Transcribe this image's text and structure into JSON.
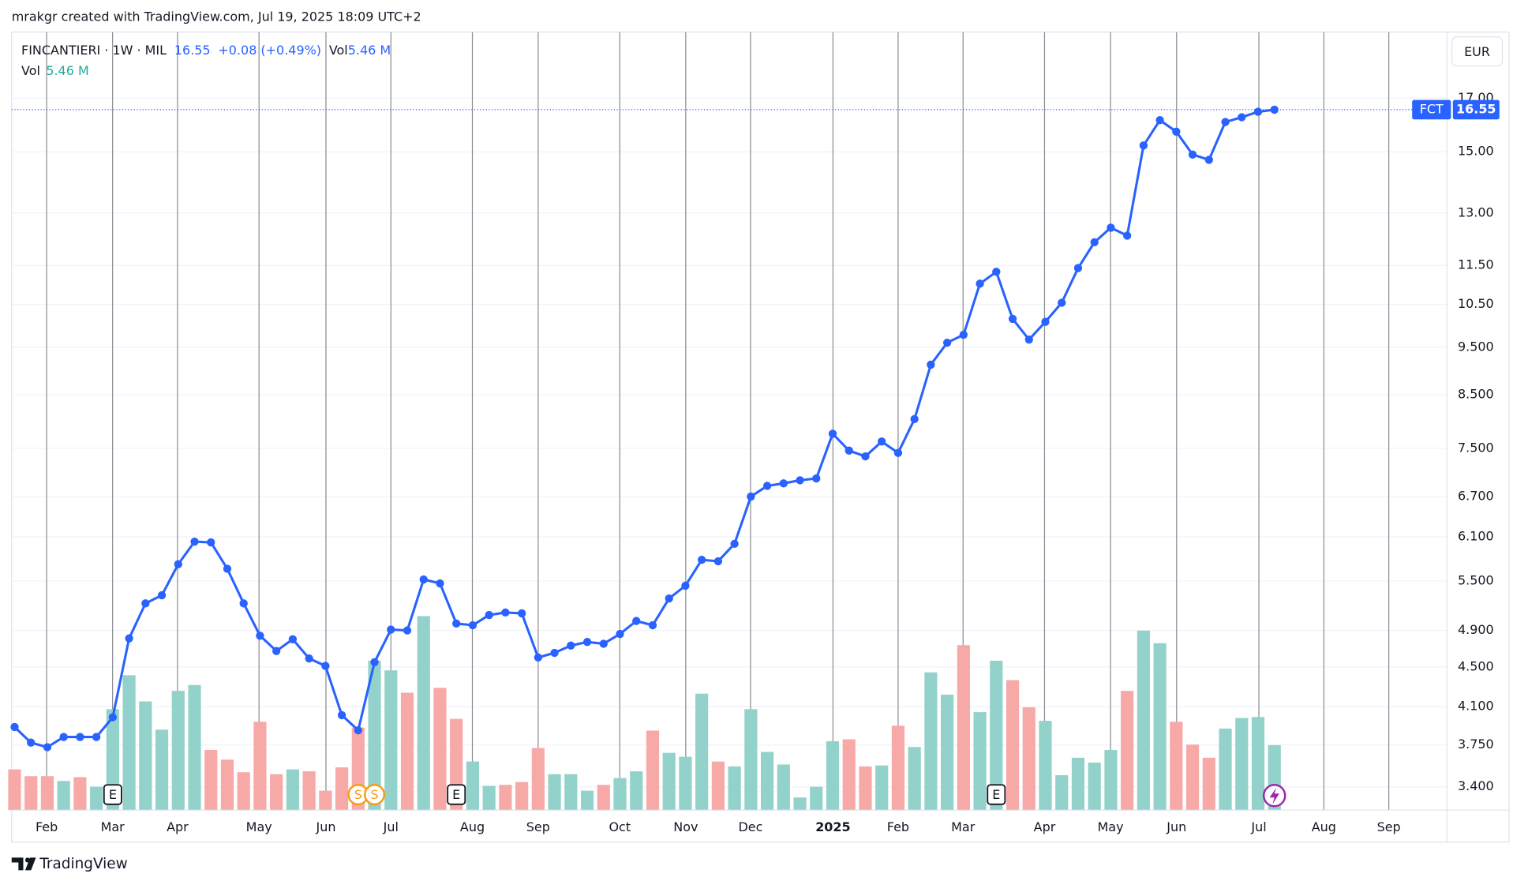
{
  "caption": "mrakgr created with TradingView.com, Jul 19, 2025 18:09 UTC+2",
  "brand": "TradingView",
  "chart_data": {
    "type": "line",
    "title": "FINCANTIERI · 1W · MIL",
    "change": "+0.08 (+0.49%)",
    "currency": "EUR",
    "log_y": true,
    "grid": true,
    "x": [
      0,
      1,
      2,
      3,
      4,
      5,
      6,
      7,
      8,
      9,
      10,
      11,
      12,
      13,
      14,
      15,
      16,
      17,
      18,
      19,
      20,
      21,
      22,
      23,
      24,
      25,
      26,
      27,
      28,
      29,
      30,
      31,
      32,
      33,
      34,
      35,
      36,
      37,
      38,
      39,
      40,
      41,
      42,
      43,
      44,
      45,
      46,
      47,
      48,
      49,
      50,
      51,
      52,
      53,
      54,
      55,
      56,
      57,
      58,
      59,
      60,
      61,
      62,
      63,
      64,
      65,
      66,
      67,
      68,
      69,
      70,
      71,
      72,
      73,
      74,
      75,
      76,
      77
    ],
    "series": [
      {
        "name": "FCT",
        "color": "#2962ff",
        "values": [
          3.91,
          3.77,
          3.73,
          3.82,
          3.82,
          3.82,
          4.0,
          4.81,
          5.22,
          5.32,
          5.72,
          6.03,
          6.02,
          5.66,
          5.22,
          4.84,
          4.67,
          4.8,
          4.59,
          4.51,
          4.02,
          3.88,
          4.55,
          4.91,
          4.9,
          5.52,
          5.47,
          4.98,
          4.96,
          5.08,
          5.11,
          5.1,
          4.6,
          4.65,
          4.73,
          4.77,
          4.75,
          4.86,
          5.01,
          4.96,
          5.28,
          5.44,
          5.78,
          5.76,
          6.0,
          6.7,
          6.87,
          6.91,
          6.96,
          6.99,
          7.76,
          7.46,
          7.36,
          7.62,
          7.42,
          8.03,
          9.12,
          9.6,
          9.78,
          11.02,
          11.33,
          10.15,
          9.67,
          10.08,
          10.54,
          11.43,
          12.14,
          12.56,
          12.33,
          15.22,
          16.15,
          15.72,
          14.9,
          14.72,
          16.08,
          16.26,
          16.47,
          16.55
        ]
      }
    ],
    "volume": {
      "name": "Vol",
      "last_value_label": "5.46 M",
      "values": [
        3.42,
        2.85,
        2.85,
        2.45,
        2.77,
        1.96,
        8.48,
        11.33,
        9.13,
        6.76,
        10.02,
        10.51,
        5.05,
        4.24,
        3.18,
        7.42,
        3.02,
        3.42,
        3.26,
        1.63,
        3.59,
        6.93,
        12.55,
        11.74,
        9.86,
        16.3,
        10.27,
        7.66,
        4.08,
        2.04,
        2.12,
        2.36,
        5.22,
        3.02,
        3.02,
        1.63,
        2.12,
        2.69,
        3.26,
        6.68,
        4.81,
        4.48,
        9.78,
        4.08,
        3.67,
        8.48,
        4.89,
        3.83,
        1.06,
        1.96,
        5.79,
        5.95,
        3.67,
        3.75,
        7.09,
        5.3,
        11.57,
        9.7,
        13.86,
        8.23,
        12.55,
        10.92,
        8.64,
        7.5,
        2.93,
        4.4,
        3.99,
        5.05,
        10.02,
        15.08,
        14.02,
        7.42,
        5.5,
        4.4,
        6.85,
        7.74,
        7.82,
        5.46
      ],
      "colors": [
        "#f7a9a7",
        "#f7a9a7",
        "#f7a9a7",
        "#92d2cb",
        "#f7a9a7",
        "#92d2cb",
        "#92d2cb",
        "#92d2cb",
        "#92d2cb",
        "#92d2cb",
        "#92d2cb",
        "#92d2cb",
        "#f7a9a7",
        "#f7a9a7",
        "#f7a9a7",
        "#f7a9a7",
        "#f7a9a7",
        "#92d2cb",
        "#f7a9a7",
        "#f7a9a7",
        "#f7a9a7",
        "#f7a9a7",
        "#92d2cb",
        "#92d2cb",
        "#f7a9a7",
        "#92d2cb",
        "#f7a9a7",
        "#f7a9a7",
        "#92d2cb",
        "#92d2cb",
        "#f7a9a7",
        "#f7a9a7",
        "#f7a9a7",
        "#92d2cb",
        "#92d2cb",
        "#92d2cb",
        "#f7a9a7",
        "#92d2cb",
        "#92d2cb",
        "#f7a9a7",
        "#92d2cb",
        "#92d2cb",
        "#92d2cb",
        "#f7a9a7",
        "#92d2cb",
        "#92d2cb",
        "#92d2cb",
        "#92d2cb",
        "#92d2cb",
        "#92d2cb",
        "#92d2cb",
        "#f7a9a7",
        "#f7a9a7",
        "#92d2cb",
        "#f7a9a7",
        "#92d2cb",
        "#92d2cb",
        "#92d2cb",
        "#f7a9a7",
        "#92d2cb",
        "#92d2cb",
        "#f7a9a7",
        "#f7a9a7",
        "#92d2cb",
        "#92d2cb",
        "#92d2cb",
        "#92d2cb",
        "#92d2cb",
        "#f7a9a7",
        "#92d2cb",
        "#92d2cb",
        "#f7a9a7",
        "#f7a9a7",
        "#f7a9a7",
        "#92d2cb",
        "#92d2cb",
        "#92d2cb",
        "#92d2cb"
      ]
    },
    "xlim": [
      -0.18,
      87.55
    ],
    "xticks": [
      {
        "value": 1.96,
        "label": "Feb"
      },
      {
        "value": 5.99,
        "label": "Mar"
      },
      {
        "value": 9.96,
        "label": "Apr"
      },
      {
        "value": 14.94,
        "label": "May"
      },
      {
        "value": 19.03,
        "label": "Jun"
      },
      {
        "value": 23.0,
        "label": "Jul"
      },
      {
        "value": 27.98,
        "label": "Aug"
      },
      {
        "value": 32.0,
        "label": "Sep"
      },
      {
        "value": 36.99,
        "label": "Oct"
      },
      {
        "value": 41.02,
        "label": "Nov"
      },
      {
        "value": 44.98,
        "label": "Dec"
      },
      {
        "value": 50.02,
        "label": "2025",
        "bold": true
      },
      {
        "value": 54.0,
        "label": "Feb"
      },
      {
        "value": 57.97,
        "label": "Mar"
      },
      {
        "value": 62.95,
        "label": "Apr"
      },
      {
        "value": 66.98,
        "label": "May"
      },
      {
        "value": 71.02,
        "label": "Jun"
      },
      {
        "value": 76.05,
        "label": "Jul"
      },
      {
        "value": 80.02,
        "label": "Aug"
      },
      {
        "value": 83.99,
        "label": "Sep"
      }
    ],
    "ylim": [
      3.22,
      19.75
    ],
    "yticks": [
      {
        "value": 3.4,
        "label": "3.400"
      },
      {
        "value": 3.75,
        "label": "3.750"
      },
      {
        "value": 4.1,
        "label": "4.100"
      },
      {
        "value": 4.5,
        "label": "4.500"
      },
      {
        "value": 4.9,
        "label": "4.900"
      },
      {
        "value": 5.5,
        "label": "5.500"
      },
      {
        "value": 6.1,
        "label": "6.100"
      },
      {
        "value": 6.7,
        "label": "6.700"
      },
      {
        "value": 7.5,
        "label": "7.500"
      },
      {
        "value": 8.5,
        "label": "8.500"
      },
      {
        "value": 9.5,
        "label": "9.500"
      },
      {
        "value": 10.5,
        "label": "10.50"
      },
      {
        "value": 11.5,
        "label": "11.50"
      },
      {
        "value": 13,
        "label": "13.00"
      },
      {
        "value": 15,
        "label": "15.00"
      },
      {
        "value": 17,
        "label": "17.00"
      }
    ],
    "events": [
      {
        "x": 6,
        "label": "E",
        "shape": "square"
      },
      {
        "x": 21,
        "label": "S",
        "shape": "circle"
      },
      {
        "x": 22,
        "label": "S",
        "shape": "circle"
      },
      {
        "x": 27,
        "label": "E",
        "shape": "square"
      },
      {
        "x": 60,
        "label": "E",
        "shape": "square"
      }
    ]
  }
}
